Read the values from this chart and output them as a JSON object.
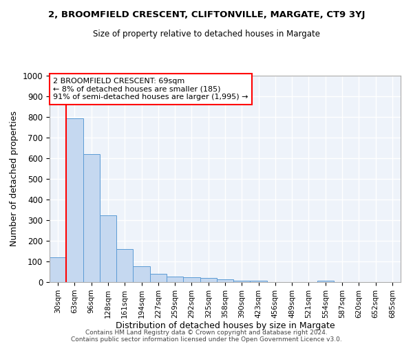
{
  "title1": "2, BROOMFIELD CRESCENT, CLIFTONVILLE, MARGATE, CT9 3YJ",
  "title2": "Size of property relative to detached houses in Margate",
  "xlabel": "Distribution of detached houses by size in Margate",
  "ylabel": "Number of detached properties",
  "bar_color": "#c5d8f0",
  "bar_edge_color": "#5b9bd5",
  "categories": [
    "30sqm",
    "63sqm",
    "96sqm",
    "128sqm",
    "161sqm",
    "194sqm",
    "227sqm",
    "259sqm",
    "292sqm",
    "325sqm",
    "358sqm",
    "390sqm",
    "423sqm",
    "456sqm",
    "489sqm",
    "521sqm",
    "554sqm",
    "587sqm",
    "620sqm",
    "652sqm",
    "685sqm"
  ],
  "values": [
    120,
    795,
    620,
    325,
    160,
    78,
    40,
    28,
    25,
    20,
    14,
    8,
    8,
    0,
    0,
    0,
    8,
    0,
    0,
    0,
    0
  ],
  "ylim": [
    0,
    1000
  ],
  "yticks": [
    0,
    100,
    200,
    300,
    400,
    500,
    600,
    700,
    800,
    900,
    1000
  ],
  "annotation_line1": "2 BROOMFIELD CRESCENT: 69sqm",
  "annotation_line2": "← 8% of detached houses are smaller (185)",
  "annotation_line3": "91% of semi-detached houses are larger (1,995) →",
  "background_color": "#eef3fa",
  "grid_color": "#ffffff",
  "footer1": "Contains HM Land Registry data © Crown copyright and database right 2024.",
  "footer2": "Contains public sector information licensed under the Open Government Licence v3.0."
}
